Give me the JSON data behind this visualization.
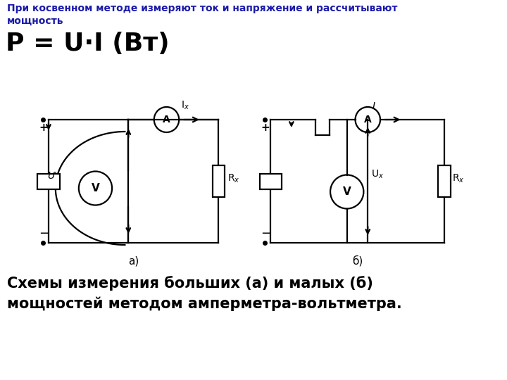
{
  "bg_color": "#ffffff",
  "title_text": "При косвенном методе измеряют ток и напряжение и рассчитывают\nмощность",
  "formula_text": "P = U·I (Вт)",
  "bottom_text": "Схемы измерения больших (а) и малых (б)\nмощностей методом амперметра-вольтметра.",
  "label_a": "а)",
  "label_b": "б)",
  "text_color": "#000000",
  "title_color": "#1a1aaa",
  "formula_color": "#000000",
  "line_color": "#000000",
  "circuit_lw": 1.6
}
